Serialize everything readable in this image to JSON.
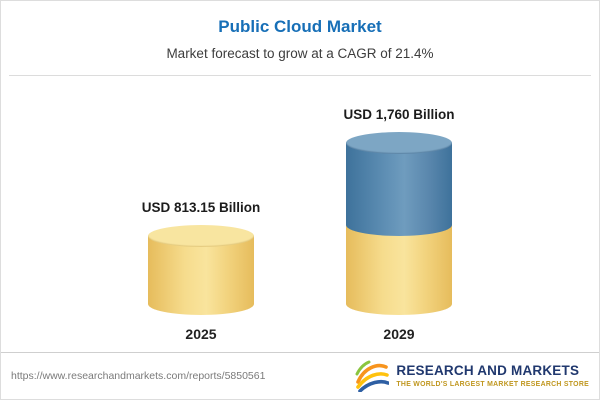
{
  "header": {
    "title": "Public Cloud Market",
    "subtitle": "Market forecast to grow at a CAGR of 21.4%"
  },
  "chart_data": {
    "type": "bar",
    "variant": "3d-cylinder",
    "title": "Public Cloud Market",
    "subtitle": "Market forecast to grow at a CAGR of 21.4%",
    "categories": [
      "2025",
      "2029"
    ],
    "values": [
      813.15,
      1760
    ],
    "value_labels": [
      "USD 813.15 Billion",
      "USD 1,760 Billion"
    ],
    "unit": "USD Billion",
    "cagr_percent": 21.4,
    "legend_position": "none",
    "grid": false,
    "colors": {
      "bar_2025": "#f3d57c",
      "bar_2029_growth_segment": "#4e81a8",
      "bar_2029_base_segment": "#f3d57c",
      "title_accent": "#176fb7"
    }
  },
  "footer": {
    "url": "https://www.researchandmarkets.com/reports/5850561",
    "logo_text": "RESEARCH AND MARKETS",
    "logo_tagline": "THE WORLD'S LARGEST MARKET RESEARCH STORE"
  }
}
